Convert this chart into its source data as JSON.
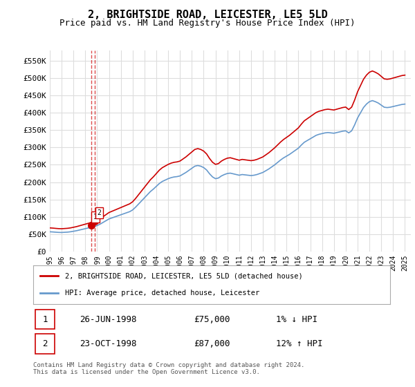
{
  "title": "2, BRIGHTSIDE ROAD, LEICESTER, LE5 5LD",
  "subtitle": "Price paid vs. HM Land Registry's House Price Index (HPI)",
  "legend_line1": "2, BRIGHTSIDE ROAD, LEICESTER, LE5 5LD (detached house)",
  "legend_line2": "HPI: Average price, detached house, Leicester",
  "footer": "Contains HM Land Registry data © Crown copyright and database right 2024.\nThis data is licensed under the Open Government Licence v3.0.",
  "transaction1_label": "1",
  "transaction1_date": "26-JUN-1998",
  "transaction1_price": "£75,000",
  "transaction1_hpi": "1% ↓ HPI",
  "transaction2_label": "2",
  "transaction2_date": "23-OCT-1998",
  "transaction2_price": "£87,000",
  "transaction2_hpi": "12% ↑ HPI",
  "transaction1_x": 1998.48,
  "transaction2_x": 1998.81,
  "transaction1_y": 75000,
  "transaction2_y": 87000,
  "ylim": [
    0,
    580000
  ],
  "xlim": [
    1995.0,
    2025.5
  ],
  "yticks": [
    0,
    50000,
    100000,
    150000,
    200000,
    250000,
    300000,
    350000,
    400000,
    450000,
    500000,
    550000
  ],
  "ytick_labels": [
    "£0",
    "£50K",
    "£100K",
    "£150K",
    "£200K",
    "£250K",
    "£300K",
    "£350K",
    "£400K",
    "£450K",
    "£500K",
    "£550K"
  ],
  "xticks": [
    1995,
    1996,
    1997,
    1998,
    1999,
    2000,
    2001,
    2002,
    2003,
    2004,
    2005,
    2006,
    2007,
    2008,
    2009,
    2010,
    2011,
    2012,
    2013,
    2014,
    2015,
    2016,
    2017,
    2018,
    2019,
    2020,
    2021,
    2022,
    2023,
    2024,
    2025
  ],
  "red_line_color": "#cc0000",
  "blue_line_color": "#6699cc",
  "vline_color": "#cc0000",
  "grid_color": "#dddddd",
  "bg_color": "#ffffff",
  "box_color": "#cc0000",
  "hpi_data_x": [
    1995.0,
    1995.25,
    1995.5,
    1995.75,
    1996.0,
    1996.25,
    1996.5,
    1996.75,
    1997.0,
    1997.25,
    1997.5,
    1997.75,
    1998.0,
    1998.25,
    1998.5,
    1998.75,
    1999.0,
    1999.25,
    1999.5,
    1999.75,
    2000.0,
    2000.25,
    2000.5,
    2000.75,
    2001.0,
    2001.25,
    2001.5,
    2001.75,
    2002.0,
    2002.25,
    2002.5,
    2002.75,
    2003.0,
    2003.25,
    2003.5,
    2003.75,
    2004.0,
    2004.25,
    2004.5,
    2004.75,
    2005.0,
    2005.25,
    2005.5,
    2005.75,
    2006.0,
    2006.25,
    2006.5,
    2006.75,
    2007.0,
    2007.25,
    2007.5,
    2007.75,
    2008.0,
    2008.25,
    2008.5,
    2008.75,
    2009.0,
    2009.25,
    2009.5,
    2009.75,
    2010.0,
    2010.25,
    2010.5,
    2010.75,
    2011.0,
    2011.25,
    2011.5,
    2011.75,
    2012.0,
    2012.25,
    2012.5,
    2012.75,
    2013.0,
    2013.25,
    2013.5,
    2013.75,
    2014.0,
    2014.25,
    2014.5,
    2014.75,
    2015.0,
    2015.25,
    2015.5,
    2015.75,
    2016.0,
    2016.25,
    2016.5,
    2016.75,
    2017.0,
    2017.25,
    2017.5,
    2017.75,
    2018.0,
    2018.25,
    2018.5,
    2018.75,
    2019.0,
    2019.25,
    2019.5,
    2019.75,
    2020.0,
    2020.25,
    2020.5,
    2020.75,
    2021.0,
    2021.25,
    2021.5,
    2021.75,
    2022.0,
    2022.25,
    2022.5,
    2022.75,
    2023.0,
    2023.25,
    2023.5,
    2023.75,
    2024.0,
    2024.25,
    2024.5,
    2024.75,
    2025.0
  ],
  "hpi_data_y": [
    57000,
    56500,
    55800,
    55200,
    55000,
    55500,
    56000,
    57000,
    58500,
    60000,
    62000,
    64000,
    66000,
    68000,
    70000,
    72000,
    75000,
    79000,
    84000,
    89000,
    94000,
    97000,
    100000,
    103000,
    106000,
    109000,
    112000,
    115000,
    120000,
    128000,
    137000,
    146000,
    155000,
    164000,
    173000,
    180000,
    188000,
    196000,
    202000,
    206000,
    210000,
    213000,
    215000,
    216000,
    218000,
    223000,
    228000,
    234000,
    240000,
    246000,
    248000,
    246000,
    242000,
    235000,
    224000,
    215000,
    210000,
    212000,
    218000,
    222000,
    225000,
    226000,
    224000,
    222000,
    220000,
    222000,
    221000,
    220000,
    219000,
    220000,
    222000,
    225000,
    228000,
    233000,
    238000,
    244000,
    250000,
    257000,
    264000,
    270000,
    275000,
    280000,
    286000,
    292000,
    298000,
    307000,
    315000,
    320000,
    325000,
    330000,
    335000,
    338000,
    340000,
    342000,
    343000,
    342000,
    341000,
    343000,
    345000,
    347000,
    348000,
    342000,
    348000,
    365000,
    385000,
    400000,
    415000,
    425000,
    432000,
    435000,
    432000,
    428000,
    422000,
    416000,
    415000,
    416000,
    418000,
    420000,
    422000,
    424000,
    425000
  ],
  "price_data_x": [
    1998.48,
    1998.81
  ],
  "price_data_y": [
    75000,
    87000
  ]
}
